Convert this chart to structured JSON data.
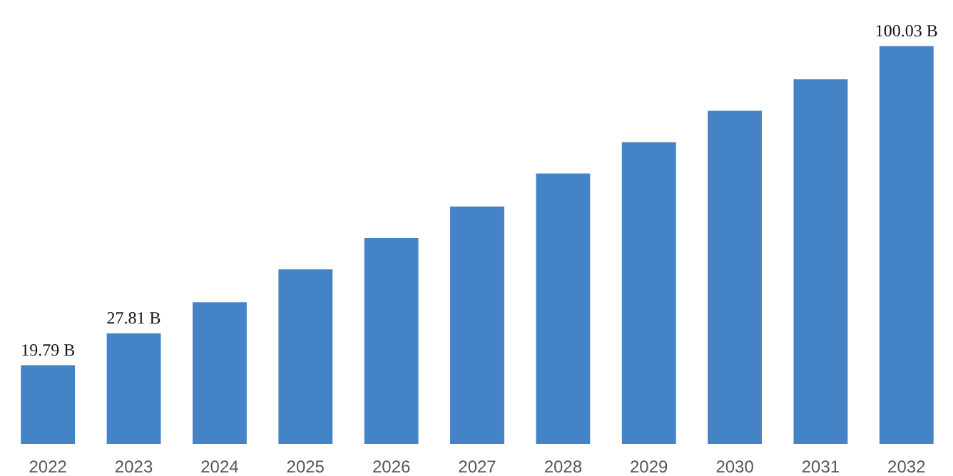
{
  "chart_data": {
    "type": "bar",
    "categories": [
      "2022",
      "2023",
      "2024",
      "2025",
      "2026",
      "2027",
      "2028",
      "2029",
      "2030",
      "2031",
      "2032"
    ],
    "values": [
      19.79,
      27.81,
      35.6,
      43.9,
      51.8,
      59.7,
      68.0,
      75.9,
      83.8,
      91.7,
      100.03
    ],
    "value_labels": [
      "19.79 B",
      "27.81 B",
      null,
      null,
      null,
      null,
      null,
      null,
      null,
      null,
      "100.03 B"
    ],
    "color": "#4383c6",
    "grid": false
  }
}
